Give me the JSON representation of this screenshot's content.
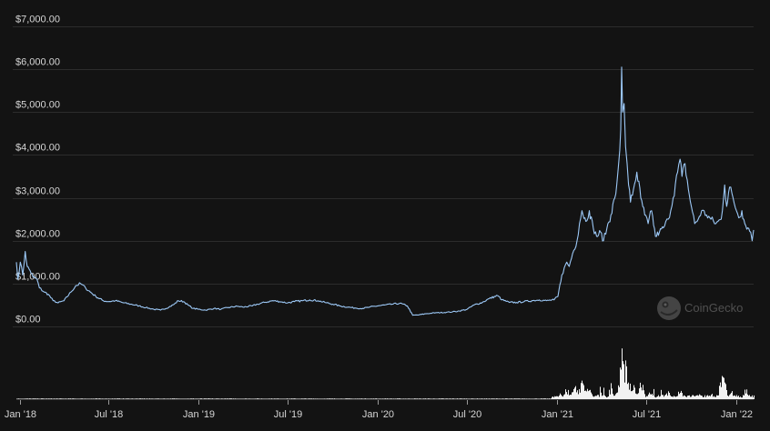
{
  "watermark": {
    "text": "CoinGecko",
    "icon": "coingecko-logo-icon"
  },
  "chart_data": {
    "type": "line",
    "title": "",
    "xlabel": "",
    "ylabel": "",
    "ylim": [
      0,
      7000
    ],
    "grid": true,
    "y_ticks": [
      {
        "value": 0,
        "label": "$0.00"
      },
      {
        "value": 1000,
        "label": "$1,000.00"
      },
      {
        "value": 2000,
        "label": "$2,000.00"
      },
      {
        "value": 3000,
        "label": "$3,000.00"
      },
      {
        "value": 4000,
        "label": "$4,000.00"
      },
      {
        "value": 5000,
        "label": "$5,000.00"
      },
      {
        "value": 6000,
        "label": "$6,000.00"
      },
      {
        "value": 7000,
        "label": "$7,000.00"
      }
    ],
    "x_range": [
      "2017-12-25",
      "2022-02-05"
    ],
    "x_ticks": [
      {
        "date": "2018-01-01",
        "label": "Jan '18"
      },
      {
        "date": "2018-07-01",
        "label": "Jul '18"
      },
      {
        "date": "2019-01-01",
        "label": "Jan '19"
      },
      {
        "date": "2019-07-01",
        "label": "Jul '19"
      },
      {
        "date": "2020-01-01",
        "label": "Jan '20"
      },
      {
        "date": "2020-07-01",
        "label": "Jul '20"
      },
      {
        "date": "2021-01-01",
        "label": "Jan '21"
      },
      {
        "date": "2021-07-01",
        "label": "Jul '21"
      },
      {
        "date": "2022-01-01",
        "label": "Jan '22"
      }
    ],
    "price": [
      [
        "2017-12-25",
        1500
      ],
      [
        "2017-12-28",
        1100
      ],
      [
        "2018-01-02",
        1500
      ],
      [
        "2018-01-07",
        1200
      ],
      [
        "2018-01-12",
        1750
      ],
      [
        "2018-01-16",
        1400
      ],
      [
        "2018-01-22",
        1300
      ],
      [
        "2018-01-28",
        1150
      ],
      [
        "2018-02-05",
        1100
      ],
      [
        "2018-02-10",
        900
      ],
      [
        "2018-02-20",
        800
      ],
      [
        "2018-02-28",
        750
      ],
      [
        "2018-03-10",
        600
      ],
      [
        "2018-03-20",
        550
      ],
      [
        "2018-04-01",
        600
      ],
      [
        "2018-04-15",
        800
      ],
      [
        "2018-04-25",
        950
      ],
      [
        "2018-05-05",
        1000
      ],
      [
        "2018-05-15",
        900
      ],
      [
        "2018-05-25",
        800
      ],
      [
        "2018-06-05",
        700
      ],
      [
        "2018-06-20",
        600
      ],
      [
        "2018-07-01",
        580
      ],
      [
        "2018-07-15",
        600
      ],
      [
        "2018-08-01",
        550
      ],
      [
        "2018-08-15",
        520
      ],
      [
        "2018-09-01",
        480
      ],
      [
        "2018-09-15",
        440
      ],
      [
        "2018-10-01",
        400
      ],
      [
        "2018-10-15",
        380
      ],
      [
        "2018-11-01",
        450
      ],
      [
        "2018-11-12",
        520
      ],
      [
        "2018-11-20",
        600
      ],
      [
        "2018-12-01",
        580
      ],
      [
        "2018-12-10",
        500
      ],
      [
        "2018-12-20",
        420
      ],
      [
        "2019-01-01",
        400
      ],
      [
        "2019-01-15",
        380
      ],
      [
        "2019-02-01",
        420
      ],
      [
        "2019-02-15",
        400
      ],
      [
        "2019-03-01",
        440
      ],
      [
        "2019-03-20",
        470
      ],
      [
        "2019-04-01",
        450
      ],
      [
        "2019-04-20",
        480
      ],
      [
        "2019-05-01",
        520
      ],
      [
        "2019-05-15",
        560
      ],
      [
        "2019-06-01",
        600
      ],
      [
        "2019-06-15",
        580
      ],
      [
        "2019-07-01",
        550
      ],
      [
        "2019-07-15",
        580
      ],
      [
        "2019-08-01",
        600
      ],
      [
        "2019-08-15",
        620
      ],
      [
        "2019-09-01",
        600
      ],
      [
        "2019-09-15",
        560
      ],
      [
        "2019-10-01",
        520
      ],
      [
        "2019-10-15",
        480
      ],
      [
        "2019-11-01",
        450
      ],
      [
        "2019-11-15",
        430
      ],
      [
        "2019-12-01",
        420
      ],
      [
        "2019-12-15",
        450
      ],
      [
        "2020-01-01",
        480
      ],
      [
        "2020-01-15",
        500
      ],
      [
        "2020-02-01",
        520
      ],
      [
        "2020-02-15",
        540
      ],
      [
        "2020-03-01",
        480
      ],
      [
        "2020-03-12",
        260
      ],
      [
        "2020-03-25",
        270
      ],
      [
        "2020-04-10",
        300
      ],
      [
        "2020-05-01",
        320
      ],
      [
        "2020-05-20",
        330
      ],
      [
        "2020-06-01",
        340
      ],
      [
        "2020-06-15",
        360
      ],
      [
        "2020-07-01",
        400
      ],
      [
        "2020-07-15",
        500
      ],
      [
        "2020-08-01",
        560
      ],
      [
        "2020-08-15",
        650
      ],
      [
        "2020-09-01",
        720
      ],
      [
        "2020-09-10",
        620
      ],
      [
        "2020-09-25",
        560
      ],
      [
        "2020-10-10",
        560
      ],
      [
        "2020-10-25",
        580
      ],
      [
        "2020-11-10",
        600
      ],
      [
        "2020-11-25",
        620
      ],
      [
        "2020-12-10",
        600
      ],
      [
        "2020-12-25",
        620
      ],
      [
        "2021-01-02",
        700
      ],
      [
        "2021-01-10",
        1200
      ],
      [
        "2021-01-20",
        1500
      ],
      [
        "2021-01-25",
        1400
      ],
      [
        "2021-02-01",
        1700
      ],
      [
        "2021-02-10",
        2000
      ],
      [
        "2021-02-15",
        2400
      ],
      [
        "2021-02-20",
        2700
      ],
      [
        "2021-02-28",
        2450
      ],
      [
        "2021-03-07",
        2700
      ],
      [
        "2021-03-15",
        2300
      ],
      [
        "2021-03-22",
        2100
      ],
      [
        "2021-03-30",
        2200
      ],
      [
        "2021-04-05",
        2000
      ],
      [
        "2021-04-12",
        2300
      ],
      [
        "2021-04-20",
        2600
      ],
      [
        "2021-04-28",
        3000
      ],
      [
        "2021-05-02",
        3300
      ],
      [
        "2021-05-05",
        3700
      ],
      [
        "2021-05-08",
        4100
      ],
      [
        "2021-05-10",
        4600
      ],
      [
        "2021-05-12",
        6050
      ],
      [
        "2021-05-14",
        5000
      ],
      [
        "2021-05-17",
        5200
      ],
      [
        "2021-05-20",
        4200
      ],
      [
        "2021-05-23",
        3800
      ],
      [
        "2021-05-26",
        3300
      ],
      [
        "2021-05-30",
        2900
      ],
      [
        "2021-06-05",
        3200
      ],
      [
        "2021-06-12",
        3600
      ],
      [
        "2021-06-20",
        3000
      ],
      [
        "2021-06-28",
        2600
      ],
      [
        "2021-07-05",
        2400
      ],
      [
        "2021-07-12",
        2700
      ],
      [
        "2021-07-20",
        2100
      ],
      [
        "2021-07-28",
        2200
      ],
      [
        "2021-08-05",
        2300
      ],
      [
        "2021-08-15",
        2500
      ],
      [
        "2021-08-25",
        3000
      ],
      [
        "2021-09-03",
        3600
      ],
      [
        "2021-09-08",
        3900
      ],
      [
        "2021-09-12",
        3500
      ],
      [
        "2021-09-18",
        3800
      ],
      [
        "2021-09-25",
        3200
      ],
      [
        "2021-10-01",
        2800
      ],
      [
        "2021-10-08",
        2400
      ],
      [
        "2021-10-15",
        2500
      ],
      [
        "2021-10-22",
        2700
      ],
      [
        "2021-11-01",
        2600
      ],
      [
        "2021-11-10",
        2500
      ],
      [
        "2021-11-20",
        2400
      ],
      [
        "2021-12-01",
        2500
      ],
      [
        "2021-12-08",
        3300
      ],
      [
        "2021-12-12",
        2800
      ],
      [
        "2021-12-18",
        3250
      ],
      [
        "2021-12-25",
        3000
      ],
      [
        "2022-01-01",
        2700
      ],
      [
        "2022-01-08",
        2550
      ],
      [
        "2022-01-12",
        2700
      ],
      [
        "2022-01-18",
        2400
      ],
      [
        "2022-01-24",
        2300
      ],
      [
        "2022-01-30",
        2200
      ],
      [
        "2022-02-02",
        2000
      ],
      [
        "2022-02-05",
        2250
      ]
    ],
    "volume_peaks": [
      [
        "2021-01-05",
        0.12
      ],
      [
        "2021-01-20",
        0.22
      ],
      [
        "2021-02-05",
        0.3
      ],
      [
        "2021-02-20",
        0.45
      ],
      [
        "2021-03-05",
        0.25
      ],
      [
        "2021-04-01",
        0.15
      ],
      [
        "2021-04-20",
        0.2
      ],
      [
        "2021-05-05",
        0.3
      ],
      [
        "2021-05-12",
        1.0
      ],
      [
        "2021-05-19",
        0.75
      ],
      [
        "2021-05-26",
        0.45
      ],
      [
        "2021-06-05",
        0.3
      ],
      [
        "2021-06-20",
        0.4
      ],
      [
        "2021-07-10",
        0.18
      ],
      [
        "2021-08-10",
        0.12
      ],
      [
        "2021-09-07",
        0.2
      ],
      [
        "2021-10-15",
        0.12
      ],
      [
        "2021-11-10",
        0.15
      ],
      [
        "2021-12-04",
        0.52
      ],
      [
        "2021-12-20",
        0.15
      ],
      [
        "2022-01-21",
        0.18
      ]
    ]
  }
}
